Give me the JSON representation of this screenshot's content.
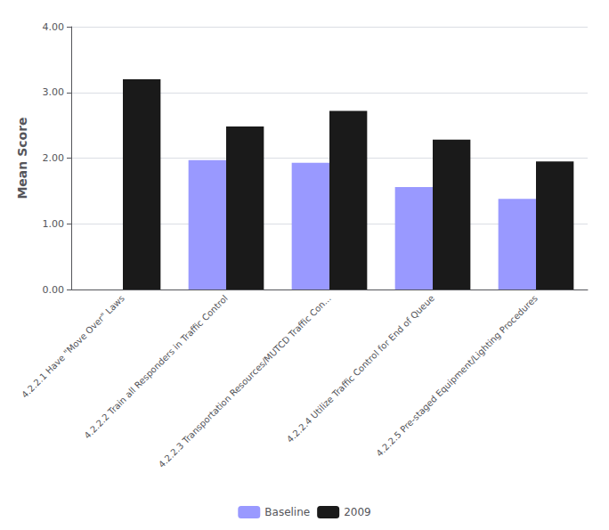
{
  "chart_data": {
    "type": "bar",
    "categories": [
      "4.2.2.1 Have \"Move Over\" Laws",
      "4.2.2.2 Train all Responders in Traffic Control",
      "4.2.2.3 Transportation Resources/MUTCD Traffic Con...",
      "4.2.2.4 Utilize Traffic Control for End of Queue",
      "4.2.2.5 Pre-staged Equipment/Lighting Procedures"
    ],
    "series": [
      {
        "name": "Baseline",
        "color": "#9999ff",
        "values": [
          null,
          1.97,
          1.93,
          1.56,
          1.38
        ]
      },
      {
        "name": "2009",
        "color": "#1a1a1a",
        "values": [
          3.2,
          2.48,
          2.72,
          2.28,
          1.95
        ]
      }
    ],
    "ylabel": "Mean Score",
    "ylim": [
      0,
      4.0
    ],
    "yticks": [
      {
        "value": 0.0,
        "label": "0.00"
      },
      {
        "value": 1.0,
        "label": "1.00"
      },
      {
        "value": 2.0,
        "label": "2.00"
      },
      {
        "value": 3.0,
        "label": "3.00"
      },
      {
        "value": 4.0,
        "label": "4.00"
      }
    ],
    "grid": true,
    "legend": "bottom"
  }
}
